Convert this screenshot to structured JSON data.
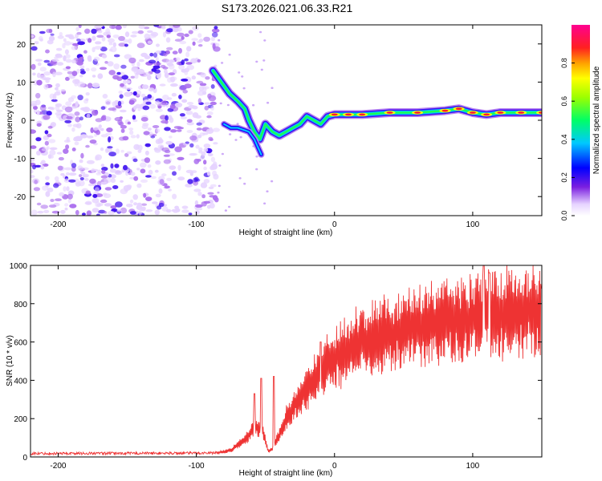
{
  "figure_title": "S173.2026.021.06.33.R21",
  "chart_data": [
    {
      "type": "heatmap",
      "title": "S173.2026.021.06.33.R21",
      "xlabel": "Height of straight line (km)",
      "ylabel": "Frequency (Hz)",
      "xlim": [
        -220,
        150
      ],
      "ylim": [
        -25,
        25
      ],
      "xticks": [
        -200,
        -100,
        0,
        100
      ],
      "yticks": [
        -20,
        -10,
        0,
        10,
        20
      ],
      "colorbar": {
        "label": "Normalized spectral amplitude",
        "range": [
          0,
          1
        ],
        "ticks": [
          0.0,
          0.2,
          0.4,
          0.6,
          0.8
        ]
      },
      "noise_region": {
        "x": [
          -220,
          -85
        ],
        "y": [
          -25,
          25
        ],
        "amplitude": [
          0.05,
          0.2
        ]
      },
      "ridge": [
        {
          "x": -88,
          "f": 13
        },
        {
          "x": -82,
          "f": 10
        },
        {
          "x": -76,
          "f": 7
        },
        {
          "x": -70,
          "f": 5
        },
        {
          "x": -65,
          "f": 3
        },
        {
          "x": -62,
          "f": 0
        },
        {
          "x": -58,
          "f": -3
        },
        {
          "x": -54,
          "f": -5
        },
        {
          "x": -50,
          "f": -1
        },
        {
          "x": -45,
          "f": -3
        },
        {
          "x": -40,
          "f": -4
        },
        {
          "x": -35,
          "f": -3
        },
        {
          "x": -30,
          "f": -2
        },
        {
          "x": -25,
          "f": -1
        },
        {
          "x": -20,
          "f": 1
        },
        {
          "x": -15,
          "f": 0
        },
        {
          "x": -10,
          "f": -1
        },
        {
          "x": -5,
          "f": 1
        },
        {
          "x": 0,
          "f": 1.5
        },
        {
          "x": 10,
          "f": 1.5
        },
        {
          "x": 20,
          "f": 1.5
        },
        {
          "x": 40,
          "f": 2
        },
        {
          "x": 60,
          "f": 2
        },
        {
          "x": 80,
          "f": 2.5
        },
        {
          "x": 90,
          "f": 3
        },
        {
          "x": 100,
          "f": 2
        },
        {
          "x": 110,
          "f": 1.5
        },
        {
          "x": 120,
          "f": 2
        },
        {
          "x": 135,
          "f": 2
        },
        {
          "x": 150,
          "f": 2
        }
      ],
      "side_branch": [
        {
          "x": -80,
          "f": -1
        },
        {
          "x": -75,
          "f": -2
        },
        {
          "x": -70,
          "f": -2
        },
        {
          "x": -62,
          "f": -3
        },
        {
          "x": -58,
          "f": -5
        },
        {
          "x": -53,
          "f": -9
        }
      ]
    },
    {
      "type": "line",
      "xlabel": "Height of straight line (km)",
      "ylabel": "SNR (10 * v/v)",
      "xlim": [
        -220,
        150
      ],
      "ylim": [
        0,
        1000
      ],
      "xticks": [
        -200,
        -100,
        0,
        100
      ],
      "yticks": [
        0,
        200,
        400,
        600,
        800,
        1000
      ],
      "series": [
        {
          "name": "SNR",
          "color": "#ee3333",
          "envelope_x": [
            -220,
            -100,
            -85,
            -75,
            -65,
            -58,
            -52,
            -48,
            -45,
            -40,
            -35,
            -30,
            -25,
            -20,
            -10,
            0,
            10,
            20,
            30,
            50,
            70,
            90,
            110,
            130,
            150
          ],
          "envelope_y": [
            18,
            20,
            22,
            35,
            90,
            150,
            140,
            30,
            40,
            120,
            200,
            260,
            300,
            350,
            460,
            520,
            560,
            600,
            630,
            660,
            700,
            720,
            740,
            760,
            750
          ],
          "peaks": [
            {
              "x": -58,
              "y": 330
            },
            {
              "x": -53,
              "y": 410
            },
            {
              "x": -44,
              "y": 420
            },
            {
              "x": -10,
              "y": 600
            },
            {
              "x": 108,
              "y": 1000
            },
            {
              "x": 112,
              "y": 960
            },
            {
              "x": 150,
              "y": 880
            }
          ]
        }
      ]
    }
  ]
}
